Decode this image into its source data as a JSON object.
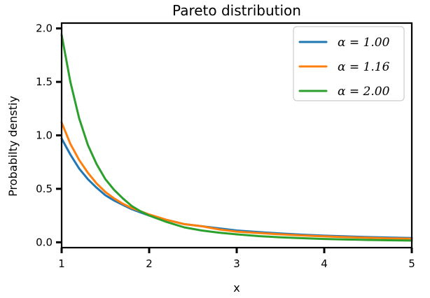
{
  "chart_data": {
    "type": "line",
    "title": "Pareto distribution",
    "xlabel": "x",
    "ylabel": "Probabilty denstiy",
    "xlim": [
      1,
      5
    ],
    "ylim": [
      -0.05,
      2.05
    ],
    "xticks": [
      1,
      2,
      3,
      4,
      5
    ],
    "yticks": [
      0.0,
      0.5,
      1.0,
      1.5,
      2.0
    ],
    "xtick_labels": [
      "1",
      "2",
      "3",
      "4",
      "5"
    ],
    "ytick_labels": [
      "0.0",
      "0.5",
      "1.0",
      "1.5",
      "2.0"
    ],
    "grid": false,
    "legend_position": "top-right",
    "x": [
      1.0,
      1.1,
      1.2,
      1.3,
      1.4,
      1.5,
      1.6,
      1.7,
      1.8,
      1.9,
      2.0,
      2.2,
      2.4,
      2.6,
      2.8,
      3.0,
      3.25,
      3.5,
      3.75,
      4.0,
      4.25,
      4.5,
      4.75,
      5.0
    ],
    "series": [
      {
        "name": "α = 1.00",
        "color": "#1f77b4",
        "values": [
          0.97,
          0.82,
          0.69,
          0.59,
          0.51,
          0.44,
          0.39,
          0.35,
          0.31,
          0.28,
          0.25,
          0.21,
          0.17,
          0.15,
          0.13,
          0.11,
          0.095,
          0.082,
          0.071,
          0.062,
          0.055,
          0.049,
          0.044,
          0.04
        ]
      },
      {
        "name": "α = 1.16",
        "color": "#ff7f0e",
        "values": [
          1.12,
          0.92,
          0.77,
          0.65,
          0.55,
          0.47,
          0.41,
          0.36,
          0.32,
          0.29,
          0.26,
          0.21,
          0.17,
          0.15,
          0.12,
          0.1,
          0.087,
          0.074,
          0.064,
          0.055,
          0.048,
          0.042,
          0.037,
          0.033
        ]
      },
      {
        "name": "α = 2.00",
        "color": "#2ca02c",
        "values": [
          1.94,
          1.5,
          1.16,
          0.91,
          0.73,
          0.59,
          0.49,
          0.41,
          0.34,
          0.29,
          0.25,
          0.19,
          0.14,
          0.11,
          0.09,
          0.074,
          0.058,
          0.047,
          0.038,
          0.031,
          0.026,
          0.022,
          0.019,
          0.016
        ]
      }
    ]
  }
}
